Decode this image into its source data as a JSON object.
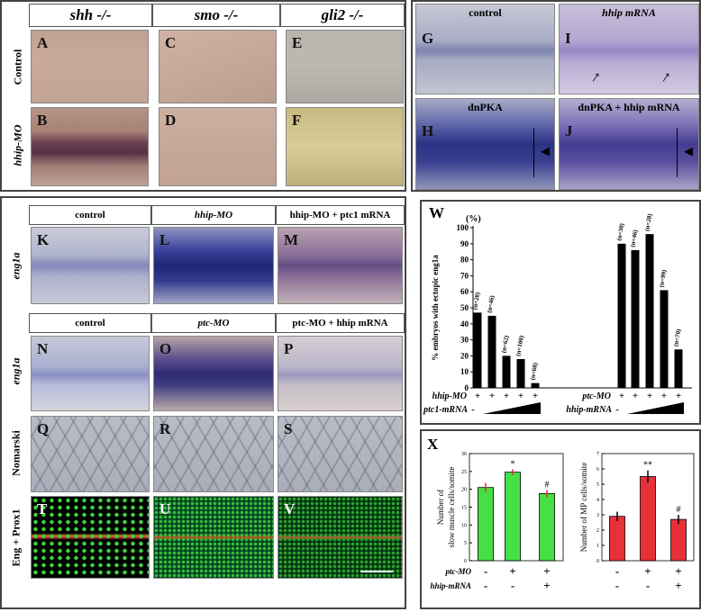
{
  "group1": {
    "columns": [
      "shh -/-",
      "smo -/-",
      "gli2 -/-"
    ],
    "rows": [
      "Control",
      "hhip-MO"
    ],
    "panels": [
      "A",
      "B",
      "C",
      "D",
      "E",
      "F"
    ]
  },
  "group2": {
    "labels": [
      "control",
      "hhip mRNA",
      "dnPKA",
      "dnPKA + hhip mRNA"
    ],
    "panels": [
      "G",
      "I",
      "H",
      "J"
    ]
  },
  "group3": {
    "row1_headers": [
      "control",
      "hhip-MO",
      "hhip-MO + ptc1 mRNA"
    ],
    "row2_headers": [
      "control",
      "ptc-MO",
      "ptc-MO + hhip mRNA"
    ],
    "side_labels": [
      "eng1a",
      "eng1a",
      "Nomarski",
      "Eng + Prox1"
    ],
    "panels": [
      "K",
      "L",
      "M",
      "N",
      "O",
      "P",
      "Q",
      "R",
      "S",
      "T",
      "U",
      "V"
    ]
  },
  "chart_data": [
    {
      "type": "bar",
      "panel": "W",
      "ylabel": "% embryos with ectopic eng1a",
      "unit": "(%)",
      "ylim": [
        0,
        100
      ],
      "yticks": [
        0,
        10,
        20,
        30,
        40,
        50,
        60,
        70,
        80,
        90,
        100
      ],
      "groups": [
        {
          "row1_label": "hhip-MO",
          "row1_signs": [
            "+",
            "+",
            "+",
            "+",
            "+"
          ],
          "row2_label": "ptc1-mRNA",
          "row2_first": "-",
          "values": [
            47,
            45,
            20,
            18,
            3
          ],
          "n_labels": [
            "(n=28)",
            "(n=46)",
            "(n=62)",
            "(n=100)",
            "(n=68)"
          ]
        },
        {
          "row1_label": "ptc-MO",
          "row1_signs": [
            "+",
            "+",
            "+",
            "+",
            "+"
          ],
          "row2_label": "hhip-mRNA",
          "row2_first": "-",
          "values": [
            90,
            86,
            96,
            61,
            24
          ],
          "n_labels": [
            "(n=30)",
            "(n=46)",
            "(n=28)",
            "(n=99)",
            "(n=70)"
          ]
        }
      ],
      "color": "#000000"
    },
    {
      "type": "bar",
      "panel": "X",
      "ylabel": "Number of slow muscle cells/somite",
      "ylim": [
        0,
        30
      ],
      "yticks": [
        0,
        5,
        10,
        15,
        20,
        25,
        30
      ],
      "values": [
        20.5,
        24.8,
        18.8
      ],
      "errors": [
        1.3,
        0.8,
        1.0
      ],
      "annotations": [
        "",
        "*",
        "#"
      ],
      "color": "#44e044",
      "error_color": "#e03030"
    },
    {
      "type": "bar",
      "panel": "X",
      "ylabel": "Number of MP cells/somite",
      "ylim": [
        0,
        7
      ],
      "yticks": [
        0,
        1,
        2,
        3,
        4,
        5,
        6,
        7
      ],
      "values": [
        2.9,
        5.5,
        2.7
      ],
      "errors": [
        0.3,
        0.4,
        0.3
      ],
      "annotations": [
        "",
        "**",
        "#"
      ],
      "color": "#e83038",
      "error_color": "#000000"
    }
  ],
  "chartX_rows": {
    "row1_label": "ptc-MO",
    "row1": [
      "-",
      "+",
      "+"
    ],
    "row2_label": "hhip-mRNA",
    "row2": [
      "-",
      "-",
      "+"
    ]
  }
}
